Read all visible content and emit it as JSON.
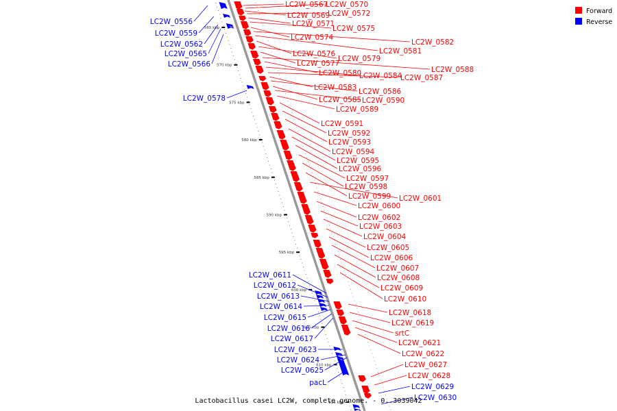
{
  "colors": {
    "forward": "#ff0000",
    "reverse": "#0000ff",
    "backbone": "#999999",
    "tick": "#000000"
  },
  "legend": {
    "forward_label": "Forward",
    "reverse_label": "Reverse"
  },
  "caption": "Lactobacillus casei LC2W, complete genome. - 0..3039042",
  "axis_ticks": [
    "565 kbp",
    "570 kbp",
    "575 kbp",
    "580 kbp",
    "585 kbp",
    "590 kbp",
    "595 kbp",
    "600 kbp",
    "605 kbp",
    "610 kbp",
    "615 kbp"
  ],
  "forward_genes": [
    "LC2W_0567",
    "LC2W_0570",
    "LC2W_0569",
    "LC2W_0572",
    "LC2W_0571",
    "LC2W_0575",
    "LC2W_0574",
    "LC2W_0582",
    "LC2W_0581",
    "LC2W_0576",
    "LC2W_0579",
    "LC2W_0577",
    "LC2W_0588",
    "LC2W_0580",
    "LC2W_0584",
    "LC2W_0587",
    "LC2W_0583",
    "LC2W_0586",
    "LC2W_0585",
    "LC2W_0590",
    "LC2W_0589",
    "LC2W_0591",
    "LC2W_0592",
    "LC2W_0593",
    "LC2W_0594",
    "LC2W_0595",
    "LC2W_0596",
    "LC2W_0597",
    "LC2W_0598",
    "LC2W_0599",
    "LC2W_0601",
    "LC2W_0600",
    "LC2W_0602",
    "LC2W_0603",
    "LC2W_0604",
    "LC2W_0605",
    "LC2W_0606",
    "LC2W_0607",
    "LC2W_0608",
    "LC2W_0609",
    "LC2W_0610",
    "LC2W_0618",
    "LC2W_0619",
    "srtC",
    "LC2W_0621",
    "LC2W_0622",
    "LC2W_0627",
    "LC2W_0628"
  ],
  "reverse_genes": [
    "LC2W_0556",
    "LC2W_0559",
    "LC2W_0562",
    "LC2W_0565",
    "LC2W_0566",
    "LC2W_0578",
    "LC2W_0611",
    "LC2W_0612",
    "LC2W_0613",
    "LC2W_0614",
    "LC2W_0615",
    "LC2W_0616",
    "LC2W_0617",
    "LC2W_0623",
    "LC2W_0624",
    "LC2W_0625",
    "pacL",
    "LC2W_0629",
    "LC2W_0630"
  ]
}
